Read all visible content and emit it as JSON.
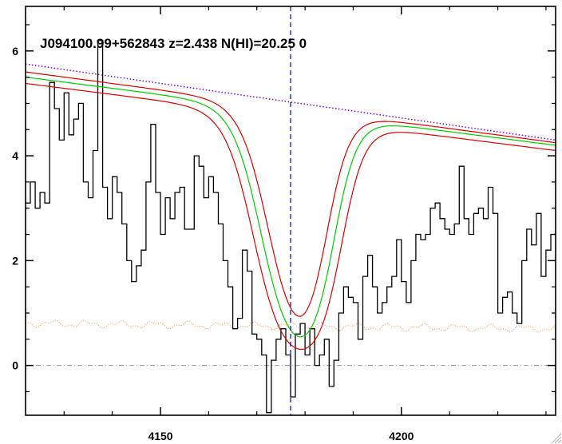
{
  "chart_data": {
    "type": "line",
    "title": "J094100.99+562843 z=2.438 N(HI)=20.25 0",
    "xlabel": "",
    "ylabel": "",
    "xlim": [
      4122,
      4232
    ],
    "ylim": [
      -0.95,
      6.85
    ],
    "x_ticks": [
      4150,
      4200
    ],
    "x_tick_labels": [
      "4150",
      "4200"
    ],
    "y_ticks": [
      0,
      2,
      4,
      6
    ],
    "y_tick_labels": [
      "0",
      "2",
      "4",
      "6"
    ],
    "grid": false,
    "line_center_x": 4177,
    "zero_level": 0,
    "colors": {
      "flux": "#000000",
      "fit": "#00cc00",
      "fit_bounds": "#dd0000",
      "continuum": "#7700ff",
      "error": "#ff9955",
      "center_line": "#0000cc",
      "zero_line": "#9a9a9a"
    },
    "series": [
      {
        "role": "flux",
        "style": "step",
        "x": [
          4122,
          4123,
          4124,
          4125,
          4126,
          4127,
          4128,
          4129,
          4130,
          4131,
          4132,
          4133,
          4134,
          4135,
          4136,
          4137,
          4138,
          4139,
          4140,
          4141,
          4142,
          4143,
          4144,
          4145,
          4146,
          4147,
          4148,
          4149,
          4150,
          4151,
          4152,
          4153,
          4154,
          4155,
          4156,
          4157,
          4158,
          4159,
          4160,
          4161,
          4162,
          4163,
          4164,
          4165,
          4166,
          4167,
          4168,
          4169,
          4170,
          4171,
          4172,
          4173,
          4174,
          4175,
          4176,
          4177,
          4178,
          4179,
          4180,
          4181,
          4182,
          4183,
          4184,
          4185,
          4186,
          4187,
          4188,
          4189,
          4190,
          4191,
          4192,
          4193,
          4194,
          4195,
          4196,
          4197,
          4198,
          4199,
          4200,
          4201,
          4202,
          4203,
          4204,
          4205,
          4206,
          4207,
          4208,
          4209,
          4210,
          4211,
          4212,
          4213,
          4214,
          4215,
          4216,
          4217,
          4218,
          4219,
          4220,
          4221,
          4222,
          4223,
          4224,
          4225,
          4226,
          4227,
          4228,
          4229,
          4230,
          4231
        ],
        "y": [
          3.1,
          3.5,
          3.0,
          3.3,
          3.1,
          5.4,
          4.9,
          4.3,
          5.2,
          4.4,
          4.7,
          5.0,
          3.5,
          3.2,
          4.1,
          6.2,
          3.4,
          2.8,
          3.6,
          3.3,
          2.7,
          2.0,
          1.6,
          1.9,
          2.2,
          3.5,
          4.6,
          3.3,
          2.5,
          3.2,
          2.8,
          3.3,
          3.4,
          2.6,
          2.6,
          4.0,
          3.8,
          3.2,
          3.6,
          3.3,
          2.7,
          2.0,
          1.5,
          0.7,
          0.9,
          2.2,
          1.8,
          0.6,
          0.5,
          0.2,
          -0.9,
          0.1,
          0.5,
          0.7,
          0.2,
          -0.6,
          0.6,
          0.8,
          0.2,
          0.7,
          0.0,
          0.2,
          0.5,
          -0.4,
          0.1,
          1.0,
          1.5,
          1.3,
          1.2,
          0.5,
          1.7,
          2.1,
          1.5,
          1.0,
          1.2,
          1.5,
          1.7,
          2.4,
          1.6,
          1.2,
          2.0,
          2.5,
          2.4,
          2.5,
          3.0,
          3.1,
          2.8,
          2.6,
          2.5,
          2.7,
          3.8,
          2.8,
          2.5,
          2.9,
          3.0,
          2.8,
          3.4,
          2.9,
          1.0,
          1.3,
          1.4,
          1.0,
          0.8,
          2.0,
          2.6,
          2.3,
          2.9,
          1.7,
          2.2,
          2.5
        ]
      },
      {
        "role": "continuum",
        "x": [
          4122,
          4232
        ],
        "y": [
          5.75,
          4.3
        ]
      },
      {
        "role": "fit",
        "x": [
          4122,
          4232
        ],
        "y": [
          5.5,
          4.2
        ]
      },
      {
        "role": "fit_upper",
        "x": [
          4122,
          4232
        ],
        "y": [
          5.6,
          4.25
        ]
      },
      {
        "role": "fit_lower",
        "x": [
          4122,
          4232
        ],
        "y": [
          5.38,
          4.1
        ]
      },
      {
        "role": "error",
        "x": [
          4122,
          4232
        ],
        "y": [
          0.8,
          0.7
        ]
      }
    ]
  }
}
